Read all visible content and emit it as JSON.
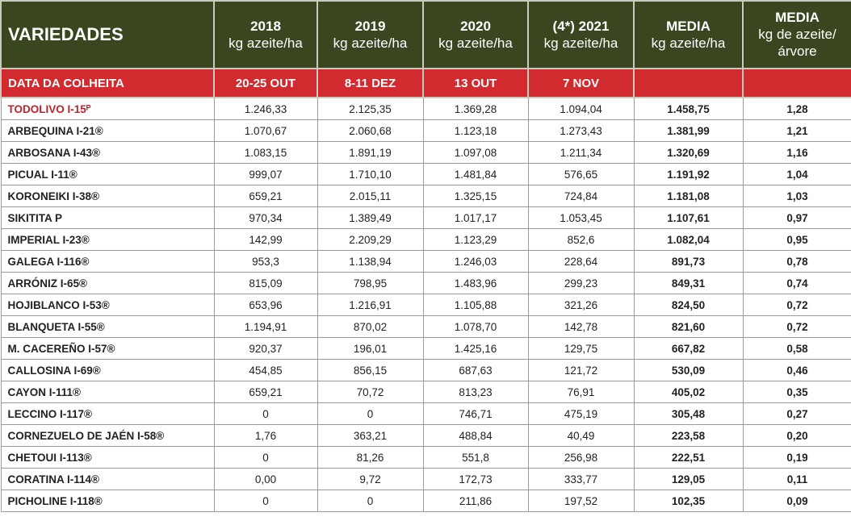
{
  "header": {
    "variety_label": "VARIEDADES",
    "columns": [
      {
        "year": "2018",
        "unit": "kg azeite/ha"
      },
      {
        "year": "2019",
        "unit": "kg azeite/ha"
      },
      {
        "year": "2020",
        "unit": "kg azeite/ha"
      },
      {
        "year": "(4*) 2021",
        "unit": "kg azeite/ha"
      },
      {
        "year": "MEDIA",
        "unit": "kg azeite/ha"
      },
      {
        "year": "MEDIA",
        "unit": "kg de azeite/",
        "unit2": "árvore"
      }
    ]
  },
  "harvest": {
    "label": "DATA DA COLHEITA",
    "dates": [
      "20-25 OUT",
      "8-11 DEZ",
      "13  OUT",
      "7 NOV",
      "",
      ""
    ]
  },
  "rows": [
    {
      "name": "TODOLIVO I-15ᴾ",
      "v": [
        "1.246,33",
        "2.125,35",
        "1.369,28",
        "1.094,04",
        "1.458,75",
        "1,28"
      ]
    },
    {
      "name": "ARBEQUINA I-21®",
      "v": [
        "1.070,67",
        "2.060,68",
        "1.123,18",
        "1.273,43",
        "1.381,99",
        "1,21"
      ]
    },
    {
      "name": "ARBOSANA I-43®",
      "v": [
        "1.083,15",
        "1.891,19",
        "1.097,08",
        "1.211,34",
        "1.320,69",
        "1,16"
      ]
    },
    {
      "name": "PICUAL I-11®",
      "v": [
        "999,07",
        "1.710,10",
        "1.481,84",
        "576,65",
        "1.191,92",
        "1,04"
      ]
    },
    {
      "name": "KORONEIKI I-38®",
      "v": [
        "659,21",
        "2.015,11",
        "1.325,15",
        "724,84",
        "1.181,08",
        "1,03"
      ]
    },
    {
      "name": "SIKITITA P",
      "v": [
        "970,34",
        "1.389,49",
        "1.017,17",
        "1.053,45",
        "1.107,61",
        "0,97"
      ]
    },
    {
      "name": "IMPERIAL I-23®",
      "v": [
        "142,99",
        "2.209,29",
        "1.123,29",
        "852,6",
        "1.082,04",
        "0,95"
      ]
    },
    {
      "name": "GALEGA I-116®",
      "v": [
        "953,3",
        "1.138,94",
        "1.246,03",
        "228,64",
        "891,73",
        "0,78"
      ]
    },
    {
      "name": "ARRÓNIZ I-65®",
      "v": [
        "815,09",
        "798,95",
        "1.483,96",
        "299,23",
        "849,31",
        "0,74"
      ]
    },
    {
      "name": "HOJIBLANCO I-53®",
      "v": [
        "653,96",
        "1.216,91",
        "1.105,88",
        "321,26",
        "824,50",
        "0,72"
      ]
    },
    {
      "name": "BLANQUETA I-55®",
      "v": [
        "1.194,91",
        "870,02",
        "1.078,70",
        "142,78",
        "821,60",
        "0,72"
      ]
    },
    {
      "name": "M. CACEREÑO I-57®",
      "v": [
        "920,37",
        "196,01",
        "1.425,16",
        "129,75",
        "667,82",
        "0,58"
      ]
    },
    {
      "name": "CALLOSINA I-69®",
      "v": [
        "454,85",
        "856,15",
        "687,63",
        "121,72",
        "530,09",
        "0,46"
      ]
    },
    {
      "name": "CAYON I-111®",
      "v": [
        "659,21",
        "70,72",
        "813,23",
        "76,91",
        "405,02",
        "0,35"
      ]
    },
    {
      "name": "LECCINO I-117®",
      "v": [
        "0",
        "0",
        "746,71",
        "475,19",
        "305,48",
        "0,27"
      ]
    },
    {
      "name": "CORNEZUELO DE JAÉN I-58®",
      "v": [
        "1,76",
        "363,21",
        "488,84",
        "40,49",
        "223,58",
        "0,20"
      ]
    },
    {
      "name": "CHETOUI I-113®",
      "v": [
        "0",
        "81,26",
        "551,8",
        "256,98",
        "222,51",
        "0,19"
      ]
    },
    {
      "name": "CORATINA I-114®",
      "v": [
        "0,00",
        "9,72",
        "172,73",
        "333,77",
        "129,05",
        "0,11"
      ]
    },
    {
      "name": "PICHOLINE I-118®",
      "v": [
        "0",
        "0",
        "211,86",
        "197,52",
        "102,35",
        "0,09"
      ]
    }
  ],
  "colors": {
    "header_bg": "#3a4620",
    "harvest_bg": "#d12a2f",
    "highlight_text": "#c4202a"
  }
}
